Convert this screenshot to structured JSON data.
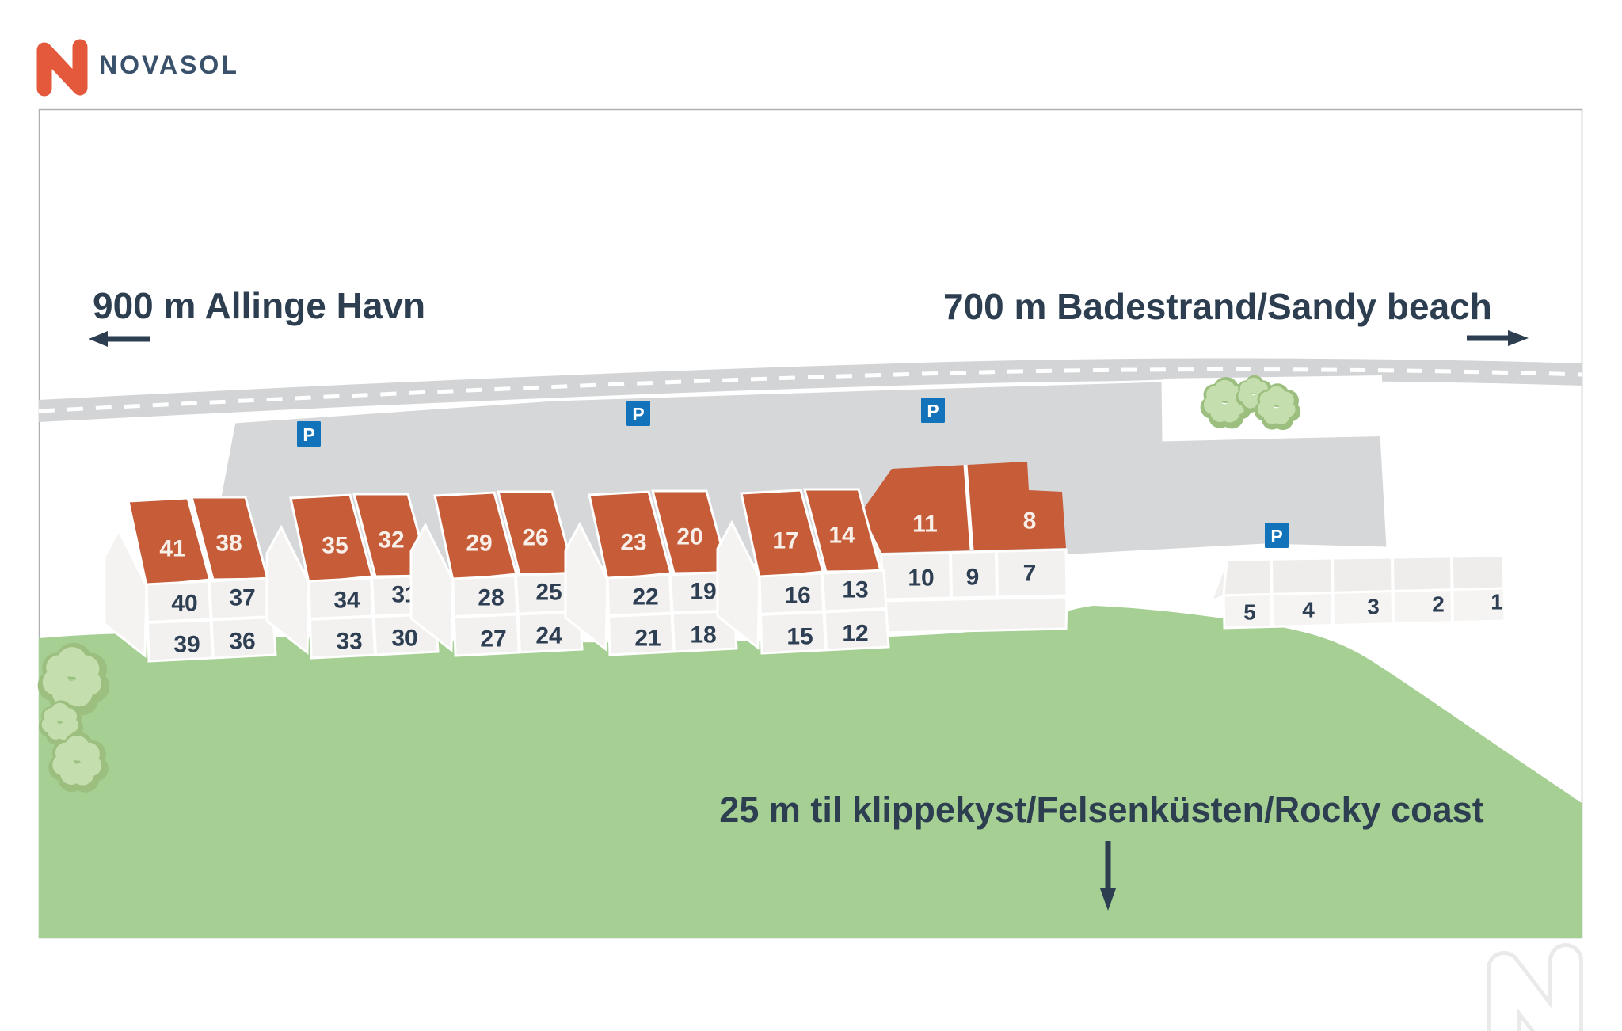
{
  "brand": {
    "name": "NOVASOL"
  },
  "labels": {
    "harbor": "900 m Allinge Havn",
    "beach": "700 m Badestrand/Sandy beach",
    "coast": "25 m til klippekyst/Felsenküsten/Rocky coast"
  },
  "parking": {
    "symbol": "P",
    "count": 4
  },
  "house_clusters": [
    {
      "roof": [
        "41",
        "38"
      ],
      "middle": [
        "40",
        "37"
      ],
      "bottom": [
        "39",
        "36"
      ]
    },
    {
      "roof": [
        "35",
        "32"
      ],
      "middle": [
        "34",
        "31"
      ],
      "bottom": [
        "33",
        "30"
      ]
    },
    {
      "roof": [
        "29",
        "26"
      ],
      "middle": [
        "28",
        "25"
      ],
      "bottom": [
        "27",
        "24"
      ]
    },
    {
      "roof": [
        "23",
        "20"
      ],
      "middle": [
        "22",
        "19"
      ],
      "bottom": [
        "21",
        "18"
      ]
    },
    {
      "roof": [
        "17",
        "14"
      ],
      "middle": [
        "16",
        "13"
      ],
      "bottom": [
        "15",
        "12"
      ]
    }
  ],
  "long_building": {
    "roof": [
      "11",
      "8"
    ],
    "front": [
      "10",
      "9",
      "7"
    ]
  },
  "terrace_row": {
    "units": [
      "5",
      "4",
      "3",
      "2",
      "1"
    ]
  },
  "colors": {
    "roof_orange": "#c65c38",
    "navy": "#2c3e50",
    "grass_green": "#a6cf93",
    "road_gray": "#d2d4d6",
    "parking_gray": "#d6d7d9",
    "parking_blue": "#1273ba",
    "logo_orange": "#e4593b",
    "tree_dark": "#9cbf80",
    "tree_light": "#c5deae",
    "facade": "#f2f1ef"
  }
}
